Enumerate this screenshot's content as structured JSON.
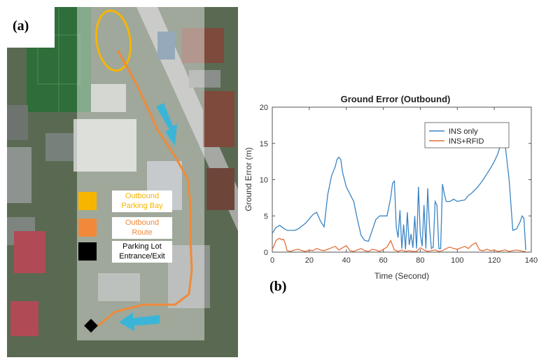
{
  "panel_a": {
    "tag": "(a)",
    "legend": [
      {
        "swatch_color": "#f7b500",
        "label": "Outbound\nParking Bay",
        "text_color": "#f7b500"
      },
      {
        "swatch_color": "#f08a3a",
        "label": "Outbound\nRoute",
        "text_color": "#f08a3a"
      },
      {
        "swatch_color": "#000000",
        "label": "Parking Lot\nEntrance/Exit",
        "text_color": "#000000"
      }
    ],
    "colors": {
      "route": "#f08a3a",
      "parking_bay": "#f7b500",
      "arrow": "#3ab5d8",
      "entrance": "#000000"
    }
  },
  "panel_b": {
    "tag": "(b)"
  },
  "chart_data": {
    "type": "line",
    "title": "Ground Error (Outbound)",
    "xlabel": "Time (Second)",
    "ylabel": "Ground Error (m)",
    "xlim": [
      0,
      140
    ],
    "ylim": [
      0,
      20
    ],
    "xticks": [
      0,
      20,
      40,
      60,
      80,
      100,
      120,
      140
    ],
    "yticks": [
      0,
      5,
      10,
      15,
      20
    ],
    "grid": false,
    "legend_position": "top-right",
    "series": [
      {
        "name": "INS only",
        "color": "#3b84c4",
        "x": [
          0,
          2,
          4,
          6,
          8,
          10,
          12,
          14,
          16,
          18,
          20,
          22,
          24,
          26,
          28,
          30,
          32,
          34,
          35,
          36,
          37,
          38,
          40,
          42,
          44,
          46,
          48,
          50,
          52,
          54,
          56,
          58,
          60,
          62,
          64,
          65,
          66,
          67,
          68,
          69,
          70,
          71,
          72,
          73,
          74,
          75,
          76,
          77,
          78,
          79,
          80,
          81,
          82,
          83,
          84,
          85,
          86,
          87,
          88,
          89,
          90,
          91,
          92,
          93,
          94,
          96,
          98,
          100,
          102,
          104,
          106,
          108,
          110,
          112,
          114,
          116,
          118,
          120,
          122,
          124,
          125,
          126,
          128,
          130,
          132,
          134,
          135,
          136,
          137
        ],
        "y": [
          2.6,
          3.4,
          3.7,
          3.3,
          3.0,
          3.0,
          3.0,
          3.2,
          3.6,
          4.0,
          4.6,
          5.2,
          5.5,
          4.3,
          3.5,
          8.0,
          10.5,
          11.8,
          12.8,
          13.1,
          12.8,
          11.0,
          9.0,
          8.0,
          7.0,
          4.5,
          2.3,
          1.6,
          1.5,
          3.0,
          4.5,
          5.0,
          5.0,
          5.0,
          7.5,
          9.5,
          9.8,
          3.5,
          2.0,
          5.8,
          0.5,
          3.8,
          0.4,
          5.5,
          1.0,
          2.5,
          0.6,
          5.0,
          0.5,
          9.0,
          2.5,
          0.8,
          6.5,
          0.5,
          8.8,
          3.5,
          0.5,
          0.7,
          7.0,
          6.5,
          0.5,
          0.5,
          9.4,
          8.0,
          7.0,
          7.0,
          7.3,
          7.0,
          7.1,
          7.2,
          7.8,
          8.2,
          8.7,
          9.3,
          10.0,
          10.8,
          11.6,
          12.5,
          13.6,
          15.4,
          15.7,
          14.5,
          10.0,
          3.0,
          3.2,
          4.2,
          5.0,
          4.7,
          0.3
        ]
      },
      {
        "name": "INS+RFID",
        "color": "#e0703c",
        "x": [
          0,
          1,
          2,
          3,
          4,
          5,
          6,
          7,
          8,
          10,
          12,
          14,
          16,
          18,
          20,
          22,
          24,
          26,
          28,
          30,
          32,
          34,
          36,
          38,
          40,
          42,
          44,
          46,
          48,
          50,
          52,
          54,
          56,
          58,
          60,
          62,
          64,
          66,
          68,
          70,
          72,
          74,
          76,
          78,
          80,
          82,
          84,
          86,
          88,
          90,
          92,
          94,
          96,
          98,
          100,
          102,
          104,
          106,
          108,
          110,
          112,
          114,
          116,
          118,
          120,
          122,
          124,
          126,
          128,
          130,
          132,
          134,
          136,
          137
        ],
        "y": [
          0.4,
          0.9,
          1.6,
          1.8,
          1.9,
          1.7,
          1.8,
          1.2,
          0.2,
          0.1,
          0.3,
          0.4,
          0.2,
          0.1,
          0.3,
          0.2,
          0.5,
          0.3,
          0.2,
          0.4,
          0.6,
          0.8,
          0.3,
          0.6,
          0.9,
          0.2,
          0.1,
          0.3,
          0.5,
          0.2,
          0.1,
          0.4,
          0.3,
          0.1,
          0.4,
          0.7,
          1.6,
          0.3,
          0.1,
          0.3,
          0.1,
          0.2,
          0.1,
          0.1,
          0.6,
          0.3,
          0.1,
          0.2,
          0.3,
          0.1,
          0.2,
          0.5,
          0.7,
          0.5,
          0.4,
          0.6,
          0.8,
          0.5,
          1.0,
          1.3,
          0.3,
          0.2,
          0.4,
          0.2,
          0.3,
          0.1,
          0.2,
          0.3,
          0.1,
          0.2,
          0.3,
          0.2,
          0.1,
          0.1
        ]
      }
    ]
  }
}
